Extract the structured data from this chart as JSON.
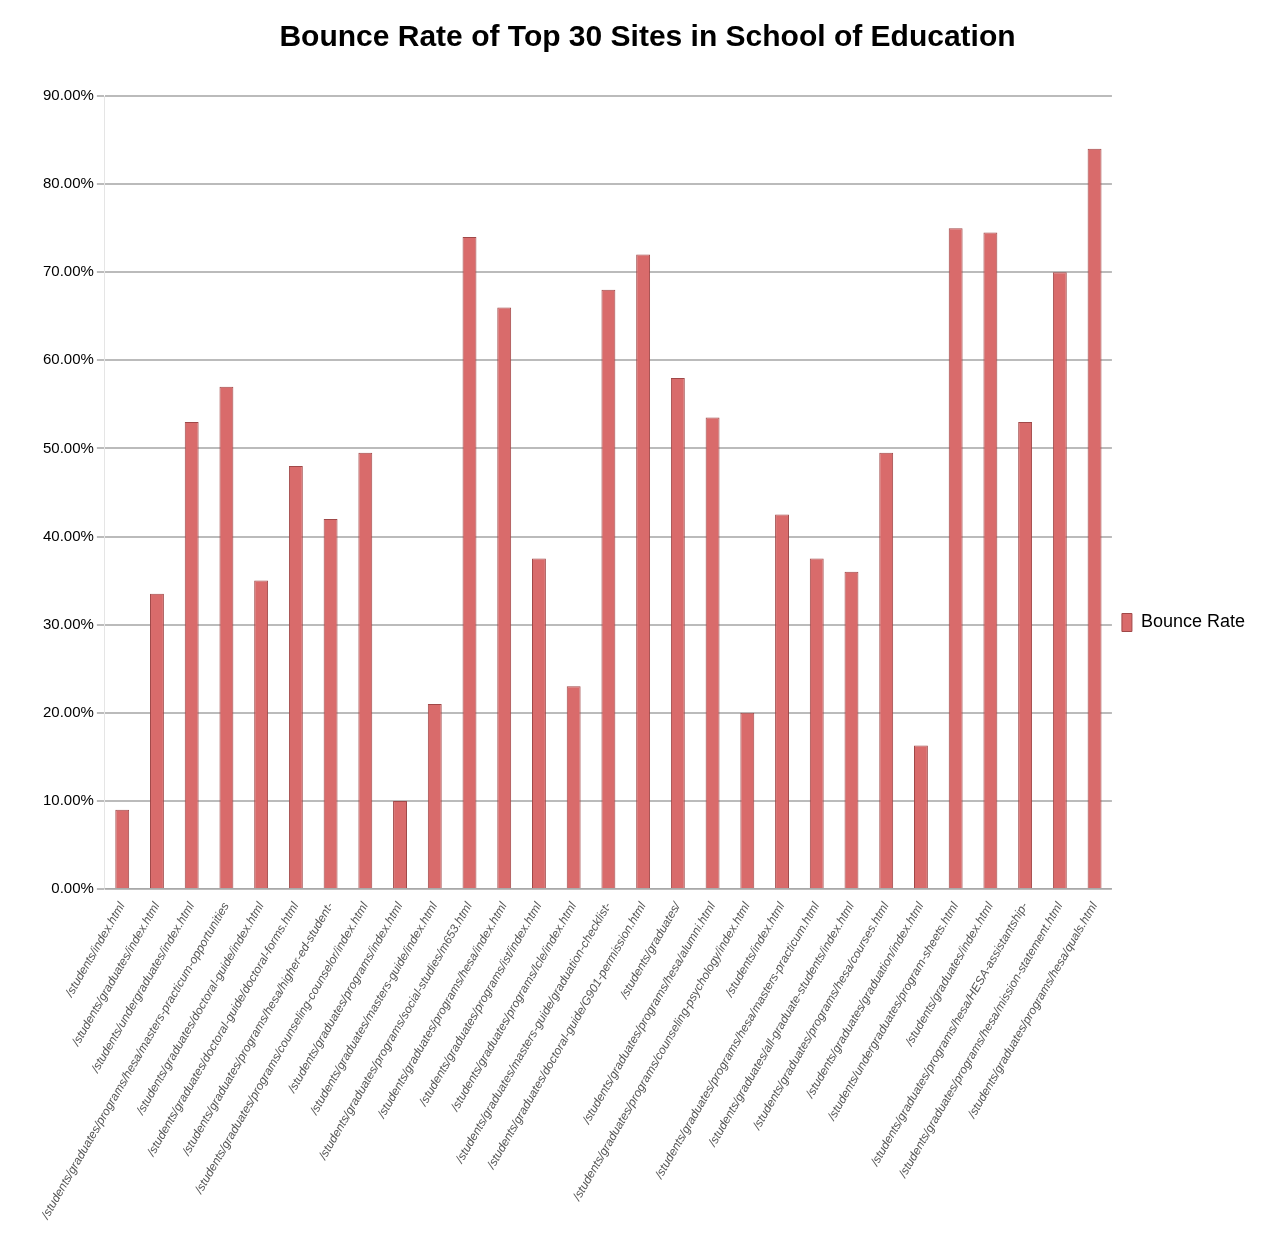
{
  "chart_data": {
    "type": "bar",
    "title": "Bounce Rate of Top 30 Sites in School of Education",
    "categories": [
      "/students/index.html",
      "/students/graduates/index.html",
      "/students/undergraduates/index.html",
      "/students/graduates/programs/hesa/masters-practicum-opportunities",
      "/students/graduates/doctoral-guide/index.html",
      "/students/graduates/doctoral-guide/doctoral-forms.html",
      "/students/graduates/programs/hesa/higher-ed-student-",
      "/students/graduates/programs/counseling-counselor/index.html",
      "/students/graduates/programs/index.html",
      "/students/graduates/masters-guide/index.html",
      "/students/graduates/programs/social-studies/m653.html",
      "/students/graduates/programs/hesa/index.html",
      "/students/graduates/programs/ist/index.html",
      "/students/graduates/programs/lcle/index.html",
      "/students/graduates/masters-guide/graduation-checklist-",
      "/students/graduates/doctoral-guide/G901-permission.html",
      "/students/graduates/",
      "/students/graduates/programs/hesa/alumni.html",
      "/students/graduates/programs/counseling-psychology/index.html",
      "/students/index.html",
      "/students/graduates/programs/hesa/masters-practicum.html",
      "/students/graduates/all-graduate-students/index.html",
      "/students/graduates/programs/hesa/courses.html",
      "/students/graduates/graduation/index.html",
      "/students/undergraduates/program-sheets.html",
      "/students/graduates/index.html",
      "/students/graduates/programs/hesa/HESA-assistantship-",
      "/students/graduates/programs/hesa/mission-statement.html",
      "/students/graduates/programs/hesa/quals.html"
    ],
    "series": [
      {
        "name": "Bounce Rate",
        "color": "#d96b6b",
        "values": [
          9,
          33.5,
          53,
          57,
          35,
          48,
          42,
          49.5,
          10,
          21,
          74,
          66,
          37.5,
          23,
          68,
          72,
          58,
          53.5,
          20,
          42.5,
          37.5,
          36,
          49.5,
          16.3,
          75,
          74.5,
          53,
          70,
          84
        ]
      }
    ],
    "ylim": [
      0,
      90
    ],
    "yticks": [
      {
        "value": 0,
        "label": "0.00%"
      },
      {
        "value": 10,
        "label": "10.00%"
      },
      {
        "value": 20,
        "label": "20.00%"
      },
      {
        "value": 30,
        "label": "30.00%"
      },
      {
        "value": 40,
        "label": "40.00%"
      },
      {
        "value": 50,
        "label": "50.00%"
      },
      {
        "value": 60,
        "label": "60.00%"
      },
      {
        "value": 70,
        "label": "70.00%"
      },
      {
        "value": 80,
        "label": "80.00%"
      },
      {
        "value": 90,
        "label": "90.00%"
      }
    ],
    "grid": "y",
    "legend": "right"
  }
}
